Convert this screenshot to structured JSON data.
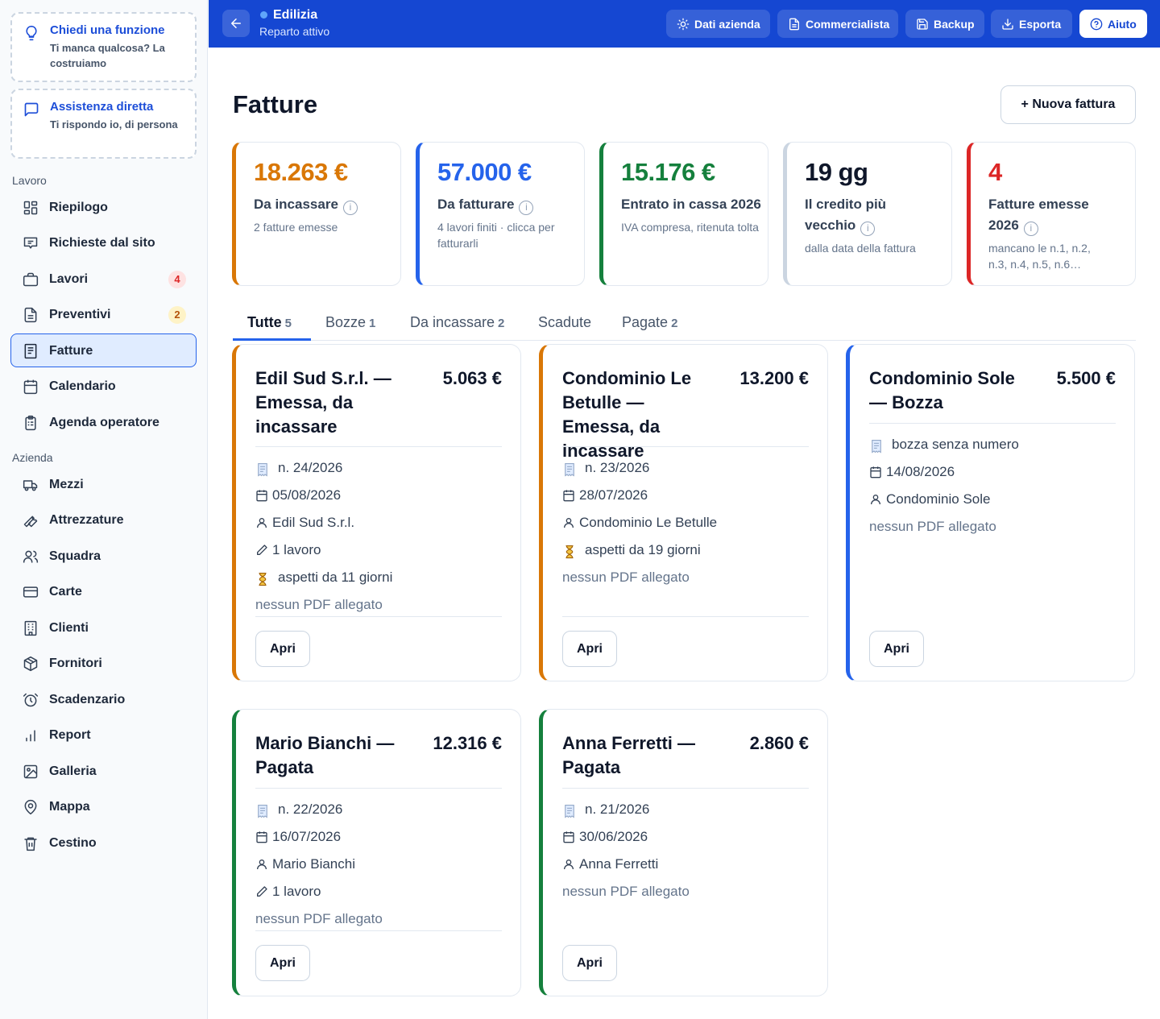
{
  "sidebar": {
    "promo1": {
      "title": "Chiedi una funzione",
      "sub": "Ti manca qualcosa? La costruiamo"
    },
    "promo2": {
      "title": "Assistenza diretta",
      "sub": "Ti rispondo io, di persona"
    },
    "section_work": "Lavoro",
    "section_company": "Azienda",
    "items": [
      {
        "label": "Riepilogo",
        "icon": "dashboard-icon"
      },
      {
        "label": "Richieste dal sito",
        "icon": "inbox-icon"
      },
      {
        "label": "Lavori",
        "icon": "briefcase-icon",
        "badge": "4"
      },
      {
        "label": "Preventivi",
        "icon": "document-icon",
        "badge": "2"
      },
      {
        "label": "Fatture",
        "icon": "invoice-icon",
        "active": true
      },
      {
        "label": "Calendario",
        "icon": "calendar-icon"
      },
      {
        "label": "Agenda operatore",
        "icon": "clipboard-icon"
      },
      {
        "label": "Mezzi",
        "icon": "truck-icon"
      },
      {
        "label": "Attrezzature",
        "icon": "wrench-icon"
      },
      {
        "label": "Squadra",
        "icon": "team-icon"
      },
      {
        "label": "Carte",
        "icon": "card-icon"
      },
      {
        "label": "Clienti",
        "icon": "building-icon"
      },
      {
        "label": "Fornitori",
        "icon": "package-icon"
      },
      {
        "label": "Scadenzario",
        "icon": "alarm-icon"
      },
      {
        "label": "Report",
        "icon": "bar-chart-icon"
      },
      {
        "label": "Galleria",
        "icon": "image-icon"
      },
      {
        "label": "Mappa",
        "icon": "map-pin-icon"
      },
      {
        "label": "Cestino",
        "icon": "trash-icon"
      }
    ]
  },
  "topbar": {
    "title": "Edilizia",
    "subtitle": "Reparto attivo",
    "buttons": {
      "company": "Dati azienda",
      "accountant": "Commercialista",
      "backup": "Backup",
      "export": "Esporta",
      "help": "Aiuto"
    }
  },
  "main": {
    "title": "Fatture",
    "new_button": "+ Nuova fattura",
    "stats": [
      {
        "value": "18.263 €",
        "label": "Da incassare",
        "note": "2 fatture emesse",
        "color": "#d97706"
      },
      {
        "value": "57.000 €",
        "label": "Da fatturare",
        "note": "4 lavori finiti · clicca per fatturarli",
        "color": "#2563eb"
      },
      {
        "value": "15.176 €",
        "label": "Entrato in cassa 2026",
        "note": "IVA compresa, ritenuta tolta",
        "color": "#15803d"
      },
      {
        "value": "19 gg",
        "label": "Il credito più vecchio",
        "note": "dalla data della fattura",
        "color": "#cbd5e1"
      },
      {
        "value": "4",
        "label": "Fatture emesse 2026",
        "note": "mancano le n.1, n.2, n.3, n.4, n.5, n.6…",
        "color": "#dc2626"
      }
    ],
    "tabs": [
      {
        "label": "Tutte",
        "count": "5"
      },
      {
        "label": "Bozze",
        "count": "1"
      },
      {
        "label": "Da incassare",
        "count": "2"
      },
      {
        "label": "Scadute",
        "count": ""
      },
      {
        "label": "Pagate",
        "count": "2"
      }
    ],
    "cards": [
      {
        "title": "Edil Sud S.r.l. — Emessa, da incassare",
        "amount": "5.063 €",
        "number": "n. 24/2026",
        "date": "05/08/2026",
        "client": "Edil Sud S.r.l.",
        "jobs": "1 lavoro",
        "waiting": "aspetti da 11 giorni",
        "pdf": "nessun PDF allegato",
        "open": "Apri",
        "color": "#d97706"
      },
      {
        "title": "Condominio Le Betulle — Emessa, da incassare",
        "amount": "13.200 €",
        "number": "n. 23/2026",
        "date": "28/07/2026",
        "client": "Condominio Le Betulle",
        "waiting": "aspetti da 19 giorni",
        "pdf": "nessun PDF allegato",
        "open": "Apri",
        "color": "#d97706"
      },
      {
        "title": "Condominio Sole — Bozza",
        "amount": "5.500 €",
        "number": "bozza senza numero",
        "date": "14/08/2026",
        "client": "Condominio Sole",
        "pdf": "nessun PDF allegato",
        "open": "Apri",
        "color": "#2563eb"
      },
      {
        "title": "Mario Bianchi — Pagata",
        "amount": "12.316 €",
        "number": "n. 22/2026",
        "date": "16/07/2026",
        "client": "Mario Bianchi",
        "jobs": "1 lavoro",
        "pdf": "nessun PDF allegato",
        "open": "Apri",
        "color": "#15803d"
      },
      {
        "title": "Anna Ferretti — Pagata",
        "amount": "2.860 €",
        "number": "n. 21/2026",
        "date": "30/06/2026",
        "client": "Anna Ferretti",
        "pdf": "nessun PDF allegato",
        "open": "Apri",
        "color": "#15803d"
      }
    ]
  }
}
